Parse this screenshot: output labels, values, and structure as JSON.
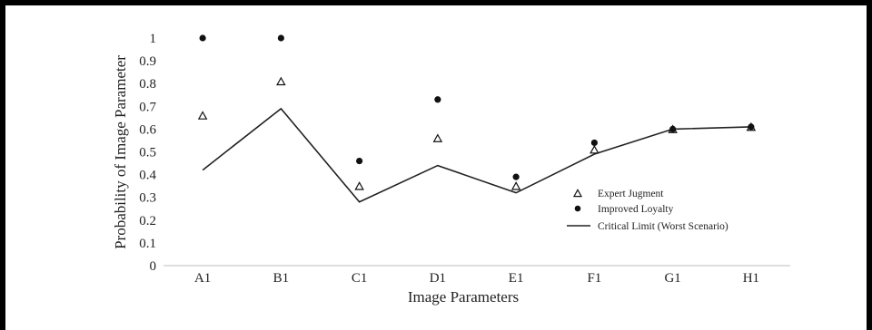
{
  "chart_data": {
    "type": "scatter",
    "title": "",
    "xlabel": "Image Parameters",
    "ylabel": "Probability of Image Parameter",
    "categories": [
      "A1",
      "B1",
      "C1",
      "D1",
      "E1",
      "F1",
      "G1",
      "H1"
    ],
    "ylim": [
      0,
      1
    ],
    "yticks": [
      "0",
      "0.1",
      "0.2",
      "0.3",
      "0.4",
      "0.5",
      "0.6",
      "0.7",
      "0.8",
      "0.9",
      "1"
    ],
    "grid": false,
    "legend_position": "right",
    "series": [
      {
        "name": "Expert Jugment",
        "kind": "triangle-marker",
        "values": [
          0.66,
          0.81,
          0.35,
          0.56,
          0.35,
          0.51,
          0.6,
          0.61
        ]
      },
      {
        "name": "Improved Loyalty",
        "kind": "dot-marker",
        "values": [
          1.0,
          1.0,
          0.46,
          0.73,
          0.39,
          0.54,
          0.6,
          0.61
        ]
      },
      {
        "name": "Critical Limit (Worst Scenario)",
        "kind": "line",
        "values": [
          0.42,
          0.69,
          0.28,
          0.44,
          0.32,
          0.49,
          0.6,
          0.61
        ]
      }
    ],
    "colors": {
      "marker": "#111111",
      "line": "#222222",
      "text": "#222222"
    }
  }
}
